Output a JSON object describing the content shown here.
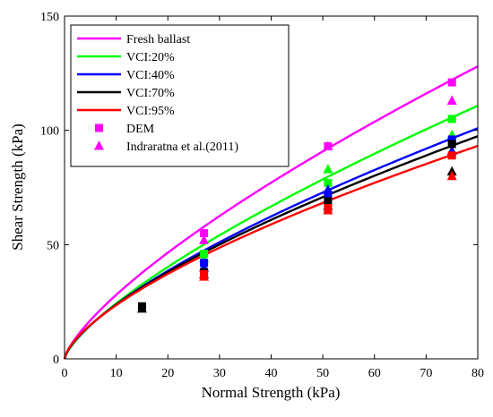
{
  "chart_data": {
    "type": "line",
    "xlabel": "Normal Strength (kPa)",
    "ylabel": "Shear Strength (kPa)",
    "xlim": [
      0,
      80
    ],
    "ylim": [
      0,
      150
    ],
    "xticks": [
      0,
      10,
      20,
      30,
      40,
      50,
      60,
      70,
      80
    ],
    "yticks": [
      0,
      50,
      100,
      150
    ],
    "grid": false,
    "legend_position": "top-left",
    "curves": [
      {
        "name": "Fresh ballast",
        "color": "#ff00ff",
        "a": 5.2,
        "b": 0.731
      },
      {
        "name": "VCI:20%",
        "color": "#00ff00",
        "a": 4.5,
        "b": 0.731
      },
      {
        "name": "VCI:40%",
        "color": "#0000ff",
        "a": 4.8,
        "b": 0.695
      },
      {
        "name": "VCI:70%",
        "color": "#000000",
        "a": 4.95,
        "b": 0.68
      },
      {
        "name": "VCI:95%",
        "color": "#ff0000",
        "a": 5.1,
        "b": 0.663
      }
    ],
    "marker_legend": [
      {
        "name": "DEM",
        "marker": "square",
        "color": "#ff00ff"
      },
      {
        "name": "Indraratna et al.(2011)",
        "marker": "triangle",
        "color": "#ff00ff"
      }
    ],
    "points": [
      {
        "x": 15,
        "y": 23,
        "marker": "square",
        "color": "#000000"
      },
      {
        "x": 15,
        "y": 22,
        "marker": "triangle",
        "color": "#000000"
      },
      {
        "x": 27,
        "y": 55,
        "marker": "square",
        "color": "#ff00ff"
      },
      {
        "x": 27,
        "y": 52,
        "marker": "triangle",
        "color": "#ff00ff"
      },
      {
        "x": 27,
        "y": 46,
        "marker": "square",
        "color": "#00ff00"
      },
      {
        "x": 27,
        "y": 44,
        "marker": "triangle",
        "color": "#00ff00"
      },
      {
        "x": 27,
        "y": 42,
        "marker": "square",
        "color": "#0000ff"
      },
      {
        "x": 27,
        "y": 40,
        "marker": "triangle",
        "color": "#0000ff"
      },
      {
        "x": 27,
        "y": 38,
        "marker": "square",
        "color": "#000000"
      },
      {
        "x": 27,
        "y": 37,
        "marker": "triangle",
        "color": "#000000"
      },
      {
        "x": 27,
        "y": 37,
        "marker": "square",
        "color": "#ff0000"
      },
      {
        "x": 27,
        "y": 36,
        "marker": "triangle",
        "color": "#ff0000"
      },
      {
        "x": 51,
        "y": 93,
        "marker": "square",
        "color": "#ff00ff"
      },
      {
        "x": 51,
        "y": 93,
        "marker": "triangle",
        "color": "#ff00ff"
      },
      {
        "x": 51,
        "y": 77,
        "marker": "square",
        "color": "#00ff00"
      },
      {
        "x": 51,
        "y": 83,
        "marker": "triangle",
        "color": "#00ff00"
      },
      {
        "x": 51,
        "y": 72,
        "marker": "square",
        "color": "#0000ff"
      },
      {
        "x": 51,
        "y": 74,
        "marker": "triangle",
        "color": "#0000ff"
      },
      {
        "x": 51,
        "y": 69,
        "marker": "square",
        "color": "#000000"
      },
      {
        "x": 51,
        "y": 67,
        "marker": "triangle",
        "color": "#000000"
      },
      {
        "x": 51,
        "y": 66,
        "marker": "square",
        "color": "#ff0000"
      },
      {
        "x": 51,
        "y": 65,
        "marker": "triangle",
        "color": "#ff0000"
      },
      {
        "x": 75,
        "y": 121,
        "marker": "square",
        "color": "#ff00ff"
      },
      {
        "x": 75,
        "y": 113,
        "marker": "triangle",
        "color": "#ff00ff"
      },
      {
        "x": 75,
        "y": 105,
        "marker": "square",
        "color": "#00ff00"
      },
      {
        "x": 75,
        "y": 98,
        "marker": "triangle",
        "color": "#00ff00"
      },
      {
        "x": 75,
        "y": 96,
        "marker": "square",
        "color": "#0000ff"
      },
      {
        "x": 75,
        "y": 91,
        "marker": "triangle",
        "color": "#0000ff"
      },
      {
        "x": 75,
        "y": 94,
        "marker": "square",
        "color": "#000000"
      },
      {
        "x": 75,
        "y": 82,
        "marker": "triangle",
        "color": "#000000"
      },
      {
        "x": 75,
        "y": 89,
        "marker": "square",
        "color": "#ff0000"
      },
      {
        "x": 75,
        "y": 80,
        "marker": "triangle",
        "color": "#ff0000"
      }
    ]
  }
}
